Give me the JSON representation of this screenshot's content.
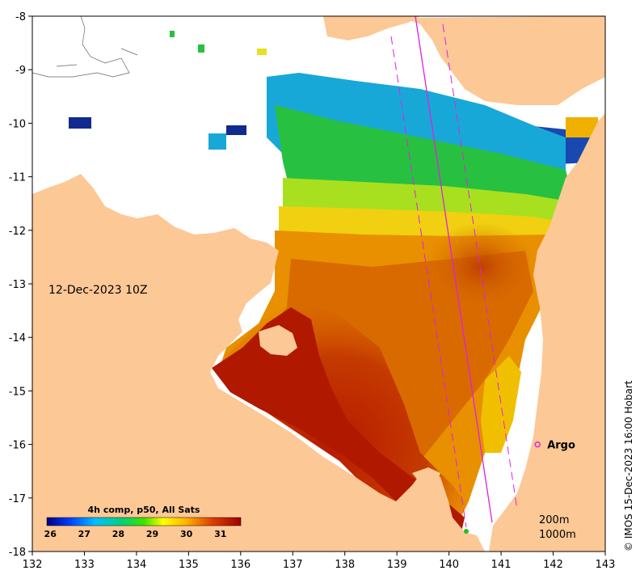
{
  "map": {
    "date_label": "12-Dec-2023 10Z",
    "credit": "© IMOS 15-Dec-2023 16:00 Hobart",
    "argo": {
      "label": "Argo",
      "lon": 141.7,
      "lat": -16.0
    },
    "depth_legend": [
      "200m",
      "1000m"
    ],
    "x_ticks": [
      "132",
      "133",
      "134",
      "135",
      "136",
      "137",
      "138",
      "139",
      "140",
      "141",
      "142",
      "143"
    ],
    "y_ticks": [
      "-8",
      "-9",
      "-10",
      "-11",
      "-12",
      "-13",
      "-14",
      "-15",
      "-16",
      "-17",
      "-18"
    ],
    "lon_range": [
      132,
      143
    ],
    "lat_range": [
      -18,
      -8
    ],
    "colorbar": {
      "title": "4h comp, p50, All Sats",
      "ticks": [
        "26",
        "27",
        "28",
        "29",
        "30",
        "31"
      ],
      "range": [
        25.9,
        31.6
      ]
    },
    "colors": {
      "land": "#fcc896",
      "no_data": "#ffffff",
      "track": "#e020e0",
      "sst_hot": "#a81000",
      "sst_warm": "#e06a00",
      "sst_mid": "#f0a800",
      "sst_yellow": "#e8e020",
      "sst_green": "#20c030",
      "sst_cyan": "#10a0d0",
      "sst_blue": "#1030a0"
    }
  }
}
